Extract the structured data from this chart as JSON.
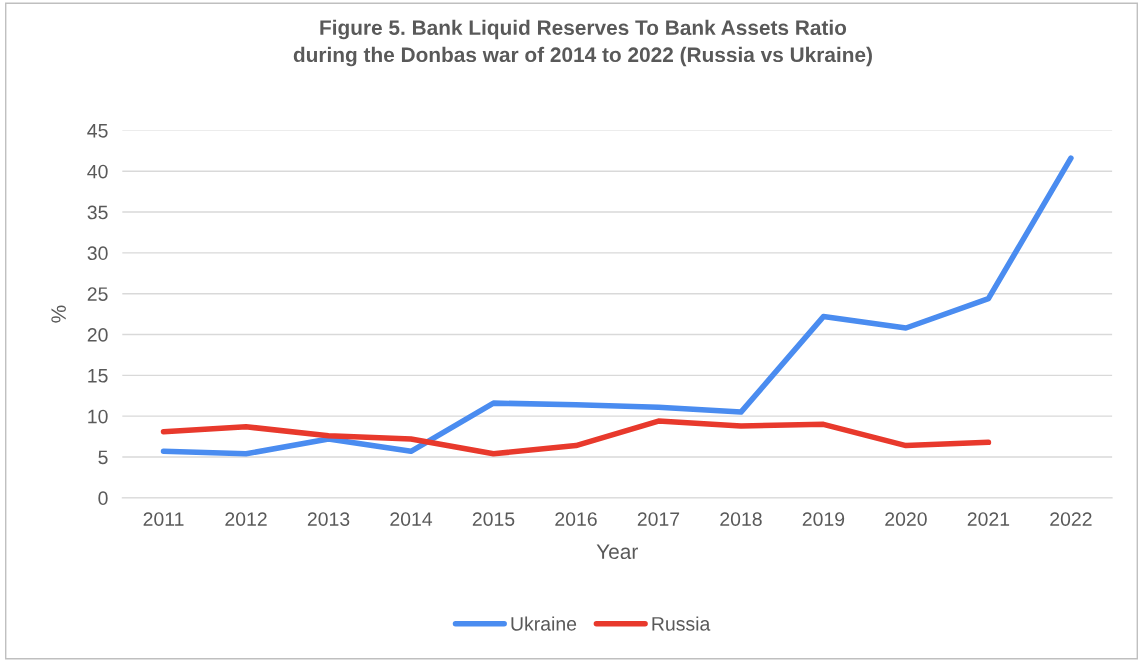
{
  "chart_data": {
    "type": "line",
    "title": "Figure 5. Bank Liquid Reserves To Bank Assets Ratio\nduring the Donbas war of 2014 to 2022 (Russia vs Ukraine)",
    "xlabel": "Year",
    "ylabel": "%",
    "categories": [
      "2011",
      "2012",
      "2013",
      "2014",
      "2015",
      "2016",
      "2017",
      "2018",
      "2019",
      "2020",
      "2021",
      "2022"
    ],
    "series": [
      {
        "name": "Ukraine",
        "color": "#4a8cf0",
        "values": [
          5.7,
          5.4,
          7.2,
          5.7,
          11.6,
          11.4,
          11.1,
          10.5,
          22.2,
          20.8,
          24.4,
          41.6
        ]
      },
      {
        "name": "Russia",
        "color": "#e8392c",
        "values": [
          8.1,
          8.7,
          7.6,
          7.2,
          5.4,
          6.4,
          9.4,
          8.8,
          9.0,
          6.4,
          6.8,
          null
        ]
      }
    ],
    "ylim": [
      0,
      45
    ],
    "yticks": [
      0,
      5,
      10,
      15,
      20,
      25,
      30,
      35,
      40,
      45
    ],
    "grid": "y",
    "legend": "bottom",
    "marker": "none",
    "line_style": "solid"
  }
}
